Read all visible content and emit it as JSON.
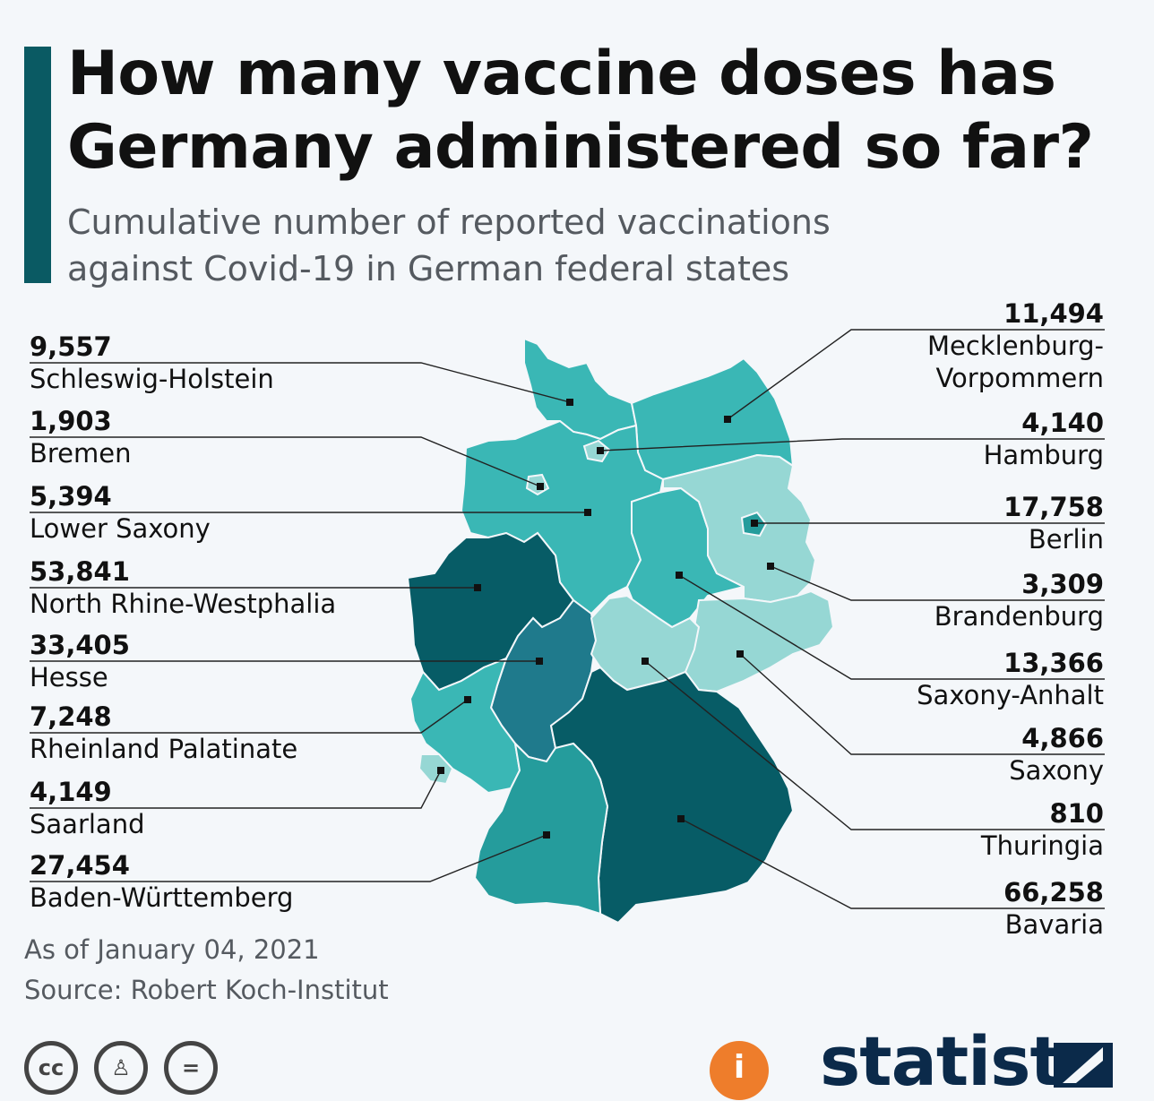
{
  "title_lines": [
    "How many vaccine doses has",
    "Germany administered so far?"
  ],
  "subtitle_lines": [
    "Cumulative number of reported vaccinations",
    "against Covid-19 in German federal states"
  ],
  "footnotes": {
    "as_of": "As of January 04, 2021",
    "source": "Source: Robert Koch-Institut"
  },
  "branding": {
    "logo": "statista",
    "license_icons": [
      "cc-icon",
      "by-icon",
      "nd-icon"
    ],
    "cc_text": "cc"
  },
  "colors": {
    "accent": "#0a5a63",
    "tier_darkest": "#075c66",
    "tier_dark": "#1f7a8c",
    "tier_mid": "#259c9c",
    "tier_light": "#3ab7b5",
    "tier_lightest": "#96d7d4"
  },
  "chart_data": {
    "type": "choropleth-map",
    "title": "How many vaccine doses has Germany administered so far?",
    "subtitle": "Cumulative number of reported vaccinations against Covid-19 in German federal states",
    "unit": "vaccinations",
    "states": [
      {
        "name": "Schleswig-Holstein",
        "value": 9557,
        "label": "9,557",
        "side": "left",
        "tier": "light"
      },
      {
        "name": "Bremen",
        "value": 1903,
        "label": "1,903",
        "side": "left",
        "tier": "lightest"
      },
      {
        "name": "Lower Saxony",
        "value": 5394,
        "label": "5,394",
        "side": "left",
        "tier": "light"
      },
      {
        "name": "North Rhine-Westphalia",
        "value": 53841,
        "label": "53,841",
        "side": "left",
        "tier": "darkest"
      },
      {
        "name": "Hesse",
        "value": 33405,
        "label": "33,405",
        "side": "left",
        "tier": "dark"
      },
      {
        "name": "Rheinland Palatinate",
        "value": 7248,
        "label": "7,248",
        "side": "left",
        "tier": "light"
      },
      {
        "name": "Saarland",
        "value": 4149,
        "label": "4,149",
        "side": "left",
        "tier": "lightest"
      },
      {
        "name": "Baden-Württemberg",
        "value": 27454,
        "label": "27,454",
        "side": "left",
        "tier": "mid"
      },
      {
        "name": "Mecklenburg-Vorpommern",
        "name_lines": [
          "Mecklenburg-",
          "Vorpommern"
        ],
        "value": 11494,
        "label": "11,494",
        "side": "right",
        "tier": "light"
      },
      {
        "name": "Hamburg",
        "value": 4140,
        "label": "4,140",
        "side": "right",
        "tier": "lightest"
      },
      {
        "name": "Berlin",
        "value": 17758,
        "label": "17,758",
        "side": "right",
        "tier": "mid"
      },
      {
        "name": "Brandenburg",
        "value": 3309,
        "label": "3,309",
        "side": "right",
        "tier": "lightest"
      },
      {
        "name": "Saxony-Anhalt",
        "value": 13366,
        "label": "13,366",
        "side": "right",
        "tier": "light"
      },
      {
        "name": "Saxony",
        "value": 4866,
        "label": "4,866",
        "side": "right",
        "tier": "lightest"
      },
      {
        "name": "Thuringia",
        "value": 810,
        "label": "810",
        "side": "right",
        "tier": "lightest"
      },
      {
        "name": "Bavaria",
        "value": 66258,
        "label": "66,258",
        "side": "right",
        "tier": "darkest"
      }
    ]
  }
}
